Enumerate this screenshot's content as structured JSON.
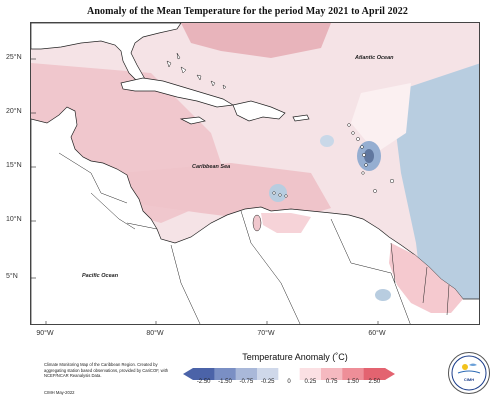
{
  "title": "Anomaly of the Mean Temperature for the period May 2021 to April 2022",
  "latitude_labels": [
    "25°N",
    "20°N",
    "15°N",
    "10°N",
    "5°N"
  ],
  "longitude_labels": [
    "90°W",
    "80°W",
    "70°W",
    "60°W"
  ],
  "places": {
    "atlantic": "Atlantic Ocean",
    "caribbean": "Caribbean Sea",
    "pacific": "Pacific Ocean"
  },
  "legend": {
    "title": "Temperature Anomaly (˚C)",
    "ticks": [
      "-2.50",
      "-1.50",
      "-0.75",
      "-0.25",
      "0",
      "0.25",
      "0.75",
      "1.50",
      "2.50"
    ],
    "colors": [
      "#4b63a8",
      "#7a8fc4",
      "#a9b8d9",
      "#cfd8ea",
      "#ffffff",
      "#fbe0e3",
      "#f5b9c0",
      "#ee8e98",
      "#e36370"
    ]
  },
  "footnote": "Climate Monitoring Map of the Caribbean Region. Created by aggregating station based observations, provided by CariCOF, with NCEP/NCAR Reanalysis Data.",
  "footdate": "CIMH May-2022",
  "logo_text": "CIMH",
  "colors": {
    "land": "#ffffff",
    "sea_base": "#f3dfe2",
    "warm_strong": "#e9a8b1",
    "warm_light": "#f7e2e6",
    "cool": "#b8cde0"
  }
}
